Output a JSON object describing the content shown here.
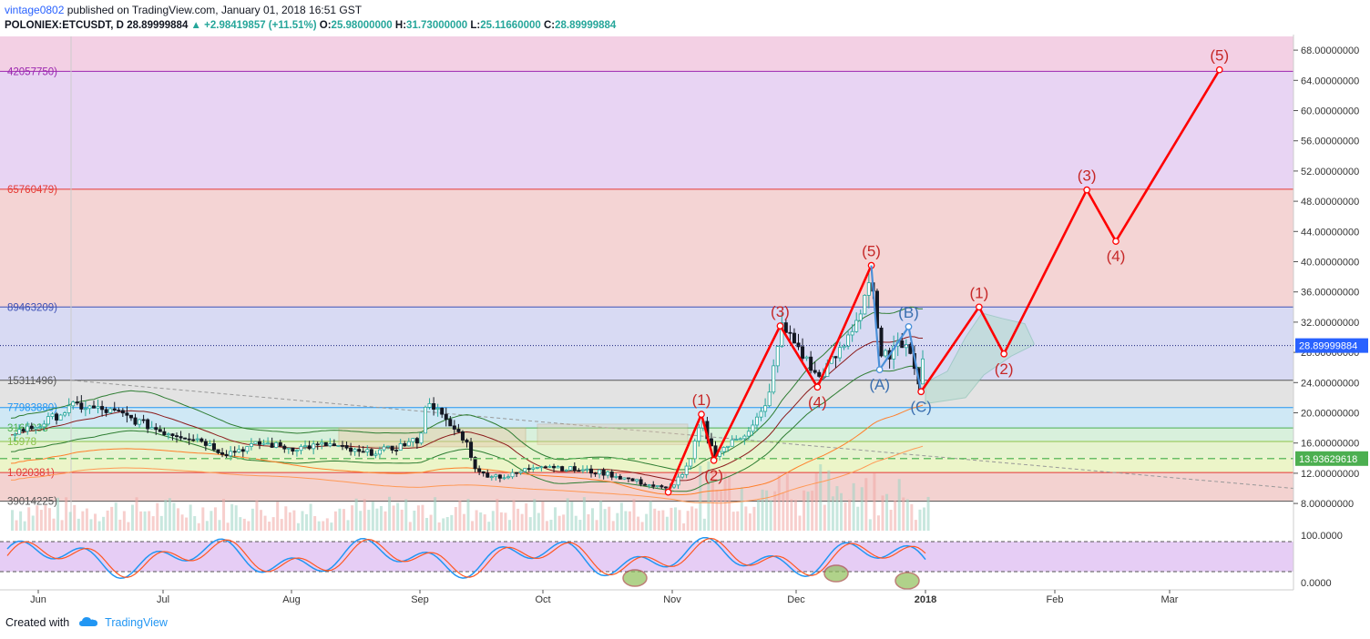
{
  "header": {
    "author": "vintage0802",
    "published": "published on TradingView.com, January 01, 2018 16:51 GST",
    "symbol": "POLONIEX:ETCUSDT, D",
    "last": "28.89999884",
    "change": "+2.98419857 (+11.51%)",
    "open_label": "O:",
    "open": "25.98000000",
    "high_label": "H:",
    "high": "31.73000000",
    "low_label": "L:",
    "low": "25.11660000",
    "close_label": "C:",
    "close": "28.89999884"
  },
  "footer": {
    "created_with": "Created with",
    "brand": "TradingView"
  },
  "colors": {
    "up": "#26a69a",
    "down": "#131722",
    "wave": "#ff0000",
    "corrective": "#4a90d9",
    "axis_bg": "#ffffff",
    "last_price_tag": "#2962ff",
    "level_tag": "#4caf50"
  },
  "chart_data": [
    {
      "type": "line",
      "title": "",
      "x_ticks": [
        "Jun",
        "Jul",
        "Aug",
        "Sep",
        "Oct",
        "Nov",
        "Dec",
        "2018",
        "Feb",
        "Mar"
      ],
      "ylim": [
        6,
        74
      ],
      "y_ticks": [
        "8.00000000",
        "12.00000000",
        "16.00000000",
        "20.00000000",
        "24.00000000",
        "28.00000000",
        "32.00000000",
        "36.00000000",
        "40.00000000",
        "44.00000000",
        "48.00000000",
        "52.00000000",
        "56.00000000",
        "60.00000000",
        "64.00000000",
        "68.00000000"
      ],
      "y_tick_values": [
        8,
        12,
        16,
        20,
        24,
        28,
        32,
        36,
        40,
        44,
        48,
        52,
        56,
        60,
        64,
        68
      ],
      "last_price": {
        "label": "28.89999884",
        "value": 28.9
      },
      "horizontal_level": {
        "label": "13.93629618",
        "value": 13.94
      },
      "fib_levels": [
        {
          "label": "42057750)",
          "value": 65.2,
          "color": "#9c27b0"
        },
        {
          "label": "65760479)",
          "value": 49.6,
          "color": "#e53935"
        },
        {
          "label": "89463209)",
          "value": 34.0,
          "color": "#3f51b5"
        },
        {
          "label": "15311496)",
          "value": 24.3,
          "color": "#555555"
        },
        {
          "label": "77983880)",
          "value": 20.7,
          "color": "#2196f3"
        },
        {
          "label": "3165938",
          "value": 18.0,
          "color": "#4caf50"
        },
        {
          "label": "15978",
          "value": 16.2,
          "color": "#8bc34a"
        },
        {
          "label": "1.020381)",
          "value": 12.1,
          "color": "#e53935"
        },
        {
          "label": "39014225)",
          "value": 8.3,
          "color": "#555555"
        }
      ],
      "series": [
        {
          "name": "",
          "kind": "impulse",
          "points": [
            {
              "x": "2017-10-31",
              "y": 9.5
            },
            {
              "x": "2017-11-08",
              "y": 19.8
            },
            {
              "x": "2017-11-11",
              "y": 13.7
            },
            {
              "x": "2017-11-27",
              "y": 31.5
            },
            {
              "x": "2017-12-06",
              "y": 23.4
            },
            {
              "x": "2017-12-19",
              "y": 39.5
            }
          ],
          "labels": [
            "(1)",
            "(2)",
            "(3)",
            "(4)",
            "(5)"
          ]
        },
        {
          "name": "",
          "kind": "corrective",
          "points": [
            {
              "x": "2017-12-19",
              "y": 39.5
            },
            {
              "x": "2017-12-21",
              "y": 25.7
            },
            {
              "x": "2017-12-28",
              "y": 31.4
            },
            {
              "x": "2017-12-31",
              "y": 22.8
            }
          ],
          "labels": [
            "(A)",
            "(B)",
            "(C)"
          ]
        },
        {
          "name": "",
          "kind": "projection",
          "points": [
            {
              "x": "2017-12-31",
              "y": 22.8
            },
            {
              "x": "2018-01-14",
              "y": 34.0
            },
            {
              "x": "2018-01-20",
              "y": 27.8
            },
            {
              "x": "2018-02-09",
              "y": 49.5
            },
            {
              "x": "2018-02-16",
              "y": 42.7
            },
            {
              "x": "2018-03-13",
              "y": 65.4
            }
          ],
          "labels": [
            "(1)",
            "(2)",
            "(3)",
            "(4)",
            "(5)"
          ]
        }
      ],
      "price_path": [
        [
          "2017-05-23",
          17.0
        ],
        [
          "2017-06-01",
          18.3
        ],
        [
          "2017-06-10",
          21.0
        ],
        [
          "2017-06-20",
          20.0
        ],
        [
          "2017-07-01",
          17.5
        ],
        [
          "2017-07-10",
          16.5
        ],
        [
          "2017-07-16",
          14.6
        ],
        [
          "2017-07-25",
          16.0
        ],
        [
          "2017-08-01",
          15.3
        ],
        [
          "2017-08-10",
          15.8
        ],
        [
          "2017-08-18",
          14.6
        ],
        [
          "2017-08-25",
          15.2
        ],
        [
          "2017-09-01",
          16.5
        ],
        [
          "2017-09-03",
          22.0
        ],
        [
          "2017-09-07",
          19.0
        ],
        [
          "2017-09-12",
          16.5
        ],
        [
          "2017-09-15",
          12.0
        ],
        [
          "2017-09-22",
          11.5
        ],
        [
          "2017-09-30",
          13.2
        ],
        [
          "2017-10-08",
          12.5
        ],
        [
          "2017-10-16",
          12.0
        ],
        [
          "2017-10-24",
          10.8
        ],
        [
          "2017-10-31",
          9.8
        ],
        [
          "2017-11-05",
          13.0
        ],
        [
          "2017-11-08",
          19.0
        ],
        [
          "2017-11-11",
          14.5
        ],
        [
          "2017-11-18",
          17.0
        ],
        [
          "2017-11-24",
          21.0
        ],
        [
          "2017-11-27",
          31.5
        ],
        [
          "2017-12-01",
          29.0
        ],
        [
          "2017-12-06",
          24.5
        ],
        [
          "2017-12-12",
          28.5
        ],
        [
          "2017-12-16",
          33.0
        ],
        [
          "2017-12-19",
          38.5
        ],
        [
          "2017-12-21",
          27.0
        ],
        [
          "2017-12-25",
          28.5
        ],
        [
          "2017-12-28",
          30.0
        ],
        [
          "2017-12-30",
          23.5
        ],
        [
          "2017-12-31",
          26.0
        ],
        [
          "2018-01-01",
          28.9
        ]
      ],
      "volume_overlay": true,
      "moving_average_bands": true,
      "ichimoku_cloud": true,
      "descending_trendline": true
    },
    {
      "type": "line",
      "title": "",
      "ylim": [
        0,
        100
      ],
      "y_ticks": [
        "100.0000",
        "0.0000"
      ],
      "y_tick_values": [
        100,
        0
      ],
      "series": [
        {
          "name": "",
          "color": "#2196f3"
        },
        {
          "name": "",
          "color": "#ff5722"
        }
      ],
      "reference_lines": [
        80,
        20
      ]
    }
  ]
}
